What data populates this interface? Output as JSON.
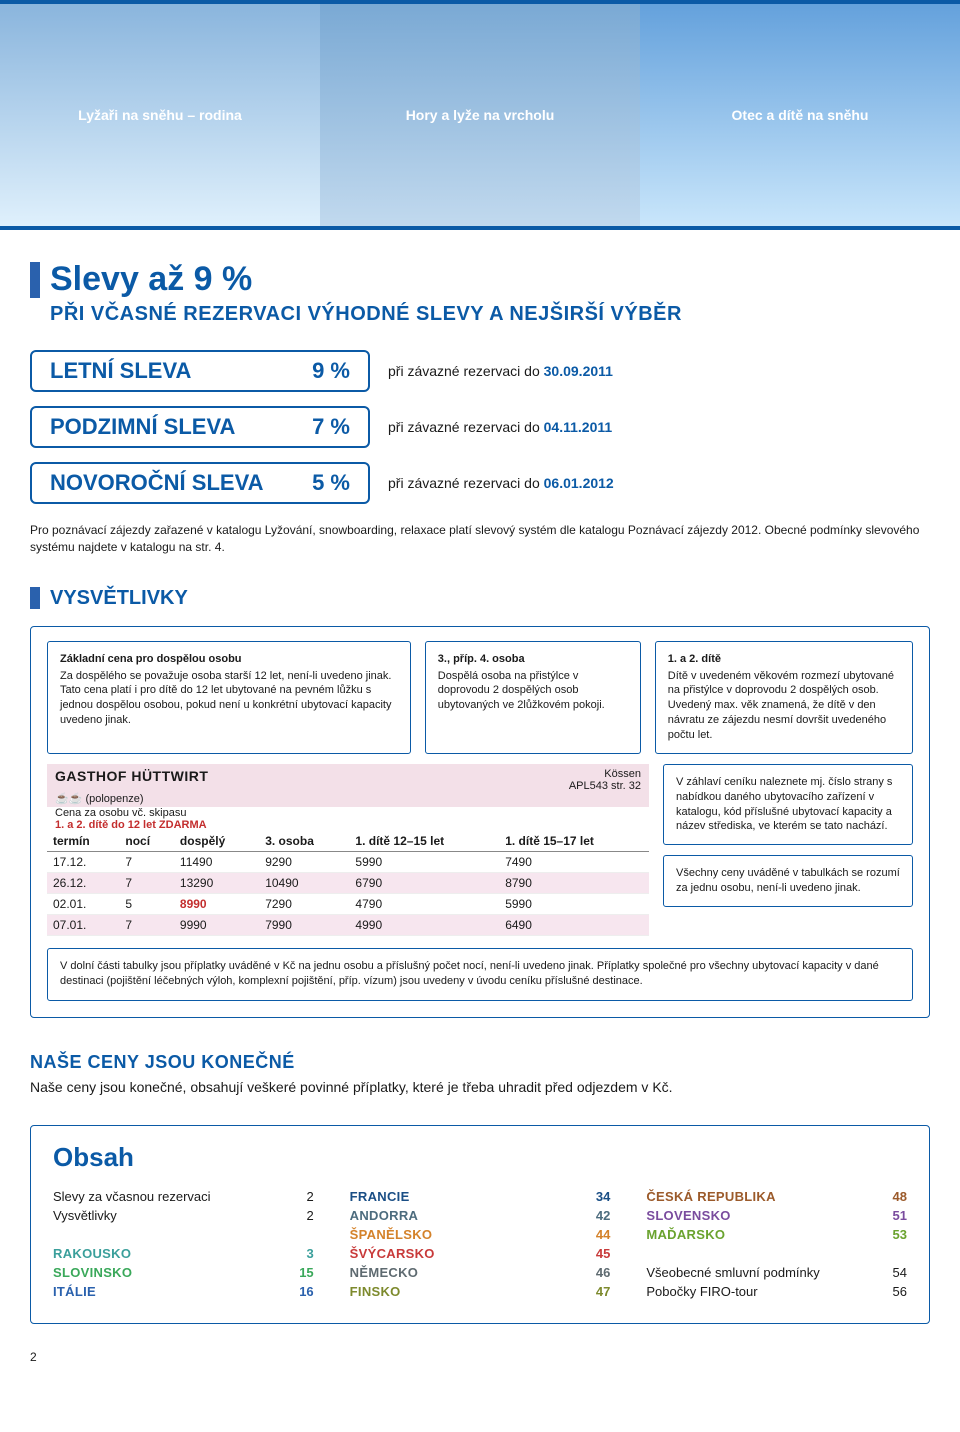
{
  "hero": {
    "img1_alt": "Lyžaři na sněhu – rodina",
    "img2_alt": "Hory a lyže na vrcholu",
    "img3_alt": "Otec a dítě na sněhu"
  },
  "title": "Slevy až 9 %",
  "subtitle": "PŘI VČASNÉ REZERVACI VÝHODNÉ SLEVY A NEJŠIRŠÍ VÝBĚR",
  "discounts": [
    {
      "label": "LETNÍ SLEVA",
      "pct": "9 %",
      "when_prefix": "při závazné rezervaci do ",
      "date": "30.09.2011"
    },
    {
      "label": "PODZIMNÍ SLEVA",
      "pct": "7 %",
      "when_prefix": "při závazné rezervaci do ",
      "date": "04.11.2011"
    },
    {
      "label": "NOVOROČNÍ SLEVA",
      "pct": "5 %",
      "when_prefix": "při závazné rezervaci do ",
      "date": "06.01.2012"
    }
  ],
  "note": "Pro poznávací zájezdy zařazené v katalogu Lyžování, snowboarding, relaxace platí slevový systém dle katalogu Poznávací zájezdy 2012. Obecné podmínky slevového systému najdete v katalogu na str. 4.",
  "legend_title": "VYSVĚTLIVKY",
  "boxes": {
    "b1_title": "Základní cena pro dospělou osobu",
    "b1_text": "Za dospělého se považuje osoba starší 12 let, není-li uvedeno jinak. Tato cena platí i pro dítě do 12 let ubytované na pevném lůžku s jednou dospělou osobou, pokud není u konkrétní ubytovací kapacity uvedeno jinak.",
    "b2_title": "3., příp. 4. osoba",
    "b2_text": "Dospělá osoba na přistýlce v doprovodu 2 dospělých osob ubytovaných ve 2lůžkovém pokoji.",
    "b3_title": "1. a 2. dítě",
    "b3_text": "Dítě v uvedeném věkovém rozmezí ubytované na přistýlce v doprovodu 2 dospělých osob. Uvedený max. věk znamená, že dítě v den návratu ze zájezdu nesmí dovršit uvedeného počtu let.",
    "b4_text": "V záhlaví ceníku naleznete mj. číslo strany s nabídkou daného ubytovacího zařízení v katalogu, kód příslušné ubytovací kapacity a název střediska, ve kterém se tato nachází.",
    "b5_text": "Všechny ceny uváděné v tabulkách se rozumí za jednu osobu, není-li uvedeno jinak."
  },
  "price": {
    "hotel": "GASTHOF HÜTTWIRT",
    "board_icons": "☕☕",
    "board": "(polopenze)",
    "place": "Kössen",
    "code": "APL543 str. 32",
    "skipas_line": "Cena za osobu vč. skipasu",
    "free_line": "1. a 2. dítě do 12 let ZDARMA",
    "columns": [
      "termín",
      "nocí",
      "dospělý",
      "3. osoba",
      "1. dítě 12–15 let",
      "1. dítě 15–17 let"
    ],
    "rows": [
      {
        "date": "17.12.",
        "noci": "7",
        "dosp": "11490",
        "os3": "9290",
        "d1": "5990",
        "d2": "7490",
        "pink": false
      },
      {
        "date": "26.12.",
        "noci": "7",
        "dosp": "13290",
        "os3": "10490",
        "d1": "6790",
        "d2": "8790",
        "pink": true
      },
      {
        "date": "02.01.",
        "noci": "5",
        "dosp": "8990",
        "os3": "7290",
        "d1": "4790",
        "d2": "5990",
        "pink": false,
        "red_dosp": true
      },
      {
        "date": "07.01.",
        "noci": "7",
        "dosp": "9990",
        "os3": "7990",
        "d1": "4990",
        "d2": "6490",
        "pink": true
      }
    ]
  },
  "bottom_box": "V dolní části tabulky jsou příplatky uváděné v Kč na jednu osobu a příslušný počet nocí, není-li uvedeno jinak. Příplatky společné pro všechny ubytovací kapacity v dané destinaci (pojištění léčebných výloh, komplexní pojištění, příp. vízum) jsou uvedeny v úvodu ceníku příslušné destinace.",
  "final": {
    "title": "NAŠE CENY JSOU KONEČNÉ",
    "text": "Naše ceny jsou konečné, obsahují veškeré povinné příplatky, které je třeba uhradit před odjezdem v Kč."
  },
  "obsah": {
    "title": "Obsah",
    "col1": [
      {
        "label": "Slevy za včasnou rezervaci",
        "page": "2",
        "cls": ""
      },
      {
        "label": "Vysvětlivky",
        "page": "2",
        "cls": ""
      },
      {
        "label": "",
        "page": "",
        "cls": ""
      },
      {
        "label": "RAKOUSKO",
        "page": "3",
        "cls": "oc-country c-teal"
      },
      {
        "label": "SLOVINSKO",
        "page": "15",
        "cls": "oc-country c-green"
      },
      {
        "label": "ITÁLIE",
        "page": "16",
        "cls": "oc-country c-blue"
      }
    ],
    "col2": [
      {
        "label": "FRANCIE",
        "page": "34",
        "cls": "oc-country c-navy"
      },
      {
        "label": "ANDORRA",
        "page": "42",
        "cls": "oc-country c-slate"
      },
      {
        "label": "ŠPANĚLSKO",
        "page": "44",
        "cls": "oc-country c-orange"
      },
      {
        "label": "ŠVÝCARSKO",
        "page": "45",
        "cls": "oc-country c-red"
      },
      {
        "label": "NĚMECKO",
        "page": "46",
        "cls": "oc-country c-gray"
      },
      {
        "label": "FINSKO",
        "page": "47",
        "cls": "oc-country c-olive"
      }
    ],
    "col3": [
      {
        "label": "ČESKÁ REPUBLIKA",
        "page": "48",
        "cls": "oc-country c-brown"
      },
      {
        "label": "SLOVENSKO",
        "page": "51",
        "cls": "oc-country c-purple"
      },
      {
        "label": "MAĎARSKO",
        "page": "53",
        "cls": "oc-country c-lime"
      },
      {
        "label": "",
        "page": "",
        "cls": ""
      },
      {
        "label": "Všeobecné smluvní podmínky",
        "page": "54",
        "cls": ""
      },
      {
        "label": "Pobočky FIRO-tour",
        "page": "56",
        "cls": ""
      }
    ]
  },
  "page_number": "2"
}
